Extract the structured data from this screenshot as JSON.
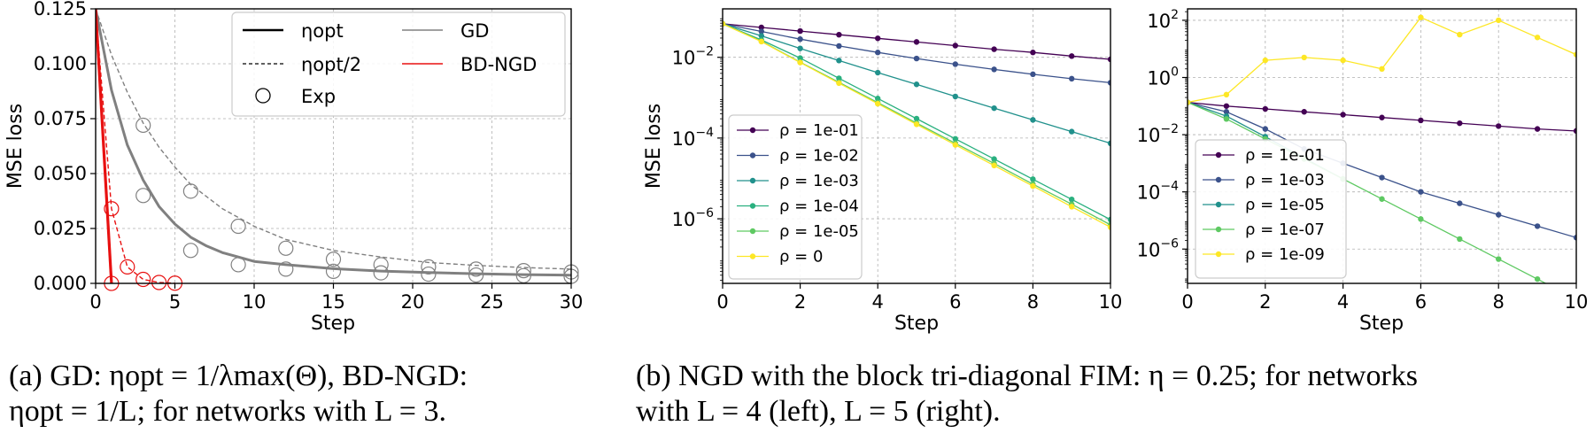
{
  "captions": {
    "a": {
      "line1": "(a) GD: ηopt = 1/λmax(Θ), BD-NGD:",
      "line2": "ηopt = 1/L; for networks with L = 3."
    },
    "b": {
      "line1": "(b) NGD with the block tri-diagonal FIM: η = 0.25; for networks",
      "line2": "with L = 4 (left), L = 5 (right)."
    }
  },
  "colors": {
    "viridis6": [
      "#440154",
      "#3b528b",
      "#21918c",
      "#2ab07f",
      "#5ec962",
      "#fde725"
    ],
    "viridis5": [
      "#440154",
      "#3b528b",
      "#21918c",
      "#5ec962",
      "#fde725"
    ],
    "gd": "#808080",
    "bdngd": "#e81010"
  },
  "chart_data": [
    {
      "id": "a",
      "type": "line",
      "xlabel": "Step",
      "ylabel": "MSE loss",
      "xlim": [
        0,
        30
      ],
      "ylim": [
        0,
        0.125
      ],
      "xticks": [
        0,
        5,
        10,
        15,
        20,
        25,
        30
      ],
      "xtick_labels": [
        "0",
        "5",
        "10",
        "15",
        "20",
        "25",
        "30"
      ],
      "yticks": [
        0,
        0.025,
        0.05,
        0.075,
        0.1,
        0.125
      ],
      "ytick_labels": [
        "0.000",
        "0.025",
        "0.050",
        "0.075",
        "0.100",
        "0.125"
      ],
      "grid": true,
      "legend_position": "top-right",
      "legend": {
        "eta_opt": "ηopt",
        "eta_half": "ηopt/2",
        "exp": "Exp",
        "gd": "GD",
        "bdngd": "BD-NGD"
      },
      "series": [
        {
          "name": "GD",
          "method": "GD",
          "rate": "eta_opt",
          "style": "solid",
          "x": [
            0,
            1,
            2,
            3,
            4,
            5,
            6,
            7,
            8,
            9,
            10,
            12,
            15,
            18,
            21,
            24,
            27,
            30
          ],
          "y": [
            0.125,
            0.088,
            0.063,
            0.047,
            0.035,
            0.027,
            0.021,
            0.017,
            0.014,
            0.012,
            0.01,
            0.0085,
            0.0067,
            0.0056,
            0.0049,
            0.0044,
            0.004,
            0.0037
          ]
        },
        {
          "name": "GD",
          "method": "GD",
          "rate": "eta_half",
          "style": "dashed",
          "x": [
            0,
            1,
            2,
            3,
            4,
            5,
            6,
            8,
            10,
            12,
            15,
            18,
            21,
            24,
            27,
            30
          ],
          "y": [
            0.125,
            0.104,
            0.087,
            0.073,
            0.062,
            0.053,
            0.045,
            0.034,
            0.026,
            0.02,
            0.015,
            0.012,
            0.0095,
            0.0082,
            0.0072,
            0.0065
          ]
        },
        {
          "name": "BD-NGD",
          "method": "BD-NGD",
          "rate": "eta_opt",
          "style": "solid",
          "x": [
            0,
            1
          ],
          "y": [
            0.125,
            0.0
          ]
        },
        {
          "name": "BD-NGD",
          "method": "BD-NGD",
          "rate": "eta_half",
          "style": "dashed",
          "x": [
            0,
            1,
            2,
            3,
            4,
            5
          ],
          "y": [
            0.125,
            0.034,
            0.0075,
            0.0018,
            0.0004,
            0.0001
          ]
        },
        {
          "name": "Exp",
          "method": "GD",
          "style": "markers",
          "x": [
            3,
            6,
            9,
            12,
            15,
            18,
            21,
            24,
            27,
            30,
            3,
            6,
            9,
            12,
            15,
            18,
            21,
            24,
            27,
            30
          ],
          "y": [
            0.072,
            0.042,
            0.026,
            0.016,
            0.011,
            0.0085,
            0.0075,
            0.0065,
            0.0058,
            0.0052,
            0.04,
            0.015,
            0.0085,
            0.0065,
            0.0055,
            0.0048,
            0.0042,
            0.0038,
            0.0035,
            0.0032
          ]
        },
        {
          "name": "Exp",
          "method": "BD-NGD",
          "style": "markers",
          "x": [
            1,
            1,
            2,
            3,
            4,
            5
          ],
          "y": [
            0.034,
            0.0,
            0.0075,
            0.0018,
            0.0004,
            0.0001
          ]
        }
      ]
    },
    {
      "id": "b-left",
      "type": "line",
      "xlabel": "Step",
      "ylabel": "MSE loss",
      "xlim": [
        0,
        10
      ],
      "ylim_log10": [
        -7.6,
        -0.8
      ],
      "yscale": "log",
      "xticks": [
        0,
        2,
        4,
        6,
        8,
        10
      ],
      "xtick_labels": [
        "0",
        "2",
        "4",
        "6",
        "8",
        "10"
      ],
      "yticks_log10": [
        -2,
        -4,
        -6
      ],
      "ytick_labels": [
        "10",
        "10",
        "10"
      ],
      "ytick_exponents": [
        "−2",
        "−4",
        "−6"
      ],
      "grid": true,
      "legend_position": "lower-left",
      "series": [
        {
          "name": "ρ = 1e-01",
          "log10_y": [
            -1.17,
            -1.26,
            -1.35,
            -1.44,
            -1.53,
            -1.62,
            -1.71,
            -1.8,
            -1.88,
            -1.97,
            -2.05
          ]
        },
        {
          "name": "ρ = 1e-02",
          "log10_y": [
            -1.17,
            -1.36,
            -1.55,
            -1.72,
            -1.88,
            -2.03,
            -2.17,
            -2.3,
            -2.42,
            -2.53,
            -2.63
          ]
        },
        {
          "name": "ρ = 1e-03",
          "log10_y": [
            -1.17,
            -1.47,
            -1.78,
            -2.08,
            -2.38,
            -2.67,
            -2.97,
            -3.26,
            -3.55,
            -3.84,
            -4.13
          ]
        },
        {
          "name": "ρ = 1e-04",
          "log10_y": [
            -1.17,
            -1.57,
            -2.02,
            -2.52,
            -3.02,
            -3.52,
            -4.02,
            -4.52,
            -5.02,
            -5.52,
            -6.02
          ]
        },
        {
          "name": "ρ = 1e-05",
          "log10_y": [
            -1.17,
            -1.6,
            -2.12,
            -2.62,
            -3.12,
            -3.63,
            -4.13,
            -4.63,
            -5.14,
            -5.64,
            -6.15
          ]
        },
        {
          "name": "ρ = 0",
          "log10_y": [
            -1.17,
            -1.61,
            -2.13,
            -2.64,
            -3.15,
            -3.66,
            -4.17,
            -4.68,
            -5.19,
            -5.7,
            -6.21
          ]
        }
      ],
      "x": [
        0,
        1,
        2,
        3,
        4,
        5,
        6,
        7,
        8,
        9,
        10
      ]
    },
    {
      "id": "b-right",
      "type": "line",
      "xlabel": "Step",
      "ylabel": "",
      "xlim": [
        0,
        10
      ],
      "ylim_log10": [
        -7.2,
        2.4
      ],
      "yscale": "log",
      "xticks": [
        0,
        2,
        4,
        6,
        8,
        10
      ],
      "xtick_labels": [
        "0",
        "2",
        "4",
        "6",
        "8",
        "10"
      ],
      "yticks_log10": [
        2,
        0,
        -2,
        -4,
        -6
      ],
      "ytick_labels": [
        "10",
        "10",
        "10",
        "10",
        "10"
      ],
      "ytick_exponents": [
        "2",
        "0",
        "−2",
        "−4",
        "−6"
      ],
      "grid": true,
      "legend_position": "lower-left",
      "series": [
        {
          "name": "ρ = 1e-01",
          "log10_y": [
            -0.87,
            -1.0,
            -1.1,
            -1.2,
            -1.3,
            -1.4,
            -1.5,
            -1.6,
            -1.7,
            -1.8,
            -1.87
          ]
        },
        {
          "name": "ρ = 1e-03",
          "log10_y": [
            -0.87,
            -1.2,
            -1.8,
            -2.5,
            -3.0,
            -3.5,
            -4.0,
            -4.4,
            -4.8,
            -5.2,
            -5.6
          ]
        },
        {
          "name": "ρ = 1e-05",
          "log10_y": [
            -0.87,
            -1.35,
            -2.07,
            -2.82,
            -3.55
          ]
        },
        {
          "name": "ρ = 1e-07",
          "log10_y": [
            -0.87,
            -1.45,
            -2.15,
            -2.85,
            -3.55,
            -4.25,
            -4.95,
            -5.65,
            -6.35,
            -7.05,
            -7.75
          ]
        },
        {
          "name": "ρ = 1e-09",
          "log10_y": [
            -0.87,
            -0.6,
            0.6,
            0.7,
            0.6,
            0.3,
            2.1,
            1.5,
            2.0,
            1.4,
            0.8
          ]
        }
      ],
      "x": [
        0,
        1,
        2,
        3,
        4,
        5,
        6,
        7,
        8,
        9,
        10
      ]
    }
  ]
}
